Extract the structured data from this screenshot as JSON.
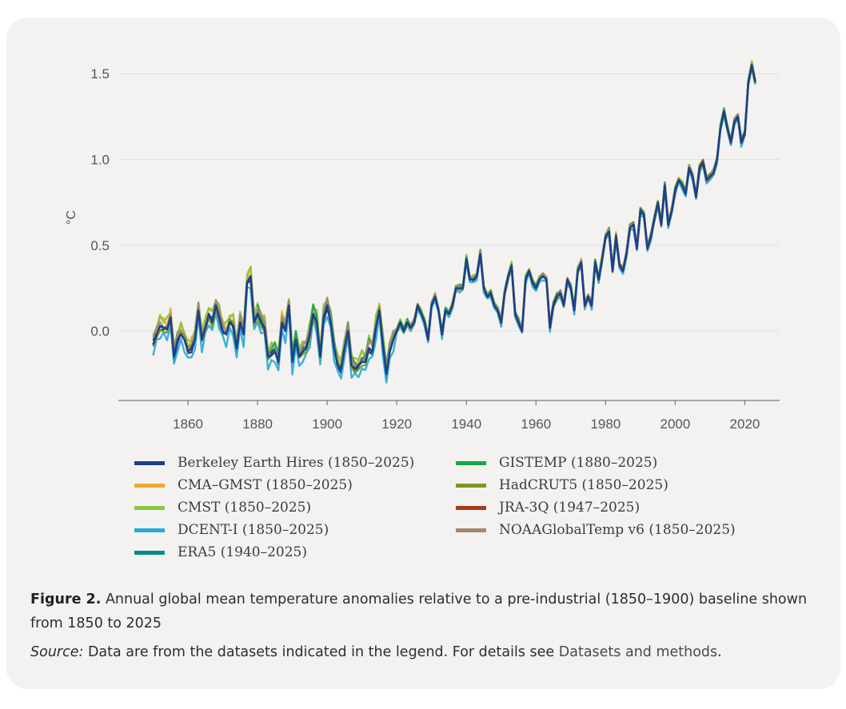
{
  "chart_data": {
    "type": "line",
    "title": "",
    "xlabel": "",
    "ylabel": "°C",
    "xlim": [
      1840,
      2030
    ],
    "ylim": [
      -0.4,
      1.65
    ],
    "x_ticks": [
      "1860",
      "1880",
      "1900",
      "1920",
      "1940",
      "1960",
      "1980",
      "2000",
      "2020"
    ],
    "y_ticks": [
      "0.0",
      "0.5",
      "1.0",
      "1.5"
    ],
    "grid": "horizontal",
    "legend_position": "bottom",
    "x": [
      1850,
      1851,
      1852,
      1853,
      1854,
      1855,
      1856,
      1857,
      1858,
      1859,
      1860,
      1861,
      1862,
      1863,
      1864,
      1865,
      1866,
      1867,
      1868,
      1869,
      1870,
      1871,
      1872,
      1873,
      1874,
      1875,
      1876,
      1877,
      1878,
      1879,
      1880,
      1881,
      1882,
      1883,
      1884,
      1885,
      1886,
      1887,
      1888,
      1889,
      1890,
      1891,
      1892,
      1893,
      1894,
      1895,
      1896,
      1897,
      1898,
      1899,
      1900,
      1901,
      1902,
      1903,
      1904,
      1905,
      1906,
      1907,
      1908,
      1909,
      1910,
      1911,
      1912,
      1913,
      1914,
      1915,
      1916,
      1917,
      1918,
      1919,
      1920,
      1921,
      1922,
      1923,
      1924,
      1925,
      1926,
      1927,
      1928,
      1929,
      1930,
      1931,
      1932,
      1933,
      1934,
      1935,
      1936,
      1937,
      1938,
      1939,
      1940,
      1941,
      1942,
      1943,
      1944,
      1945,
      1946,
      1947,
      1948,
      1949,
      1950,
      1951,
      1952,
      1953,
      1954,
      1955,
      1956,
      1957,
      1958,
      1959,
      1960,
      1961,
      1962,
      1963,
      1964,
      1965,
      1966,
      1967,
      1968,
      1969,
      1970,
      1971,
      1972,
      1973,
      1974,
      1975,
      1976,
      1977,
      1978,
      1979,
      1980,
      1981,
      1982,
      1983,
      1984,
      1985,
      1986,
      1987,
      1988,
      1989,
      1990,
      1991,
      1992,
      1993,
      1994,
      1995,
      1996,
      1997,
      1998,
      1999,
      2000,
      2001,
      2002,
      2003,
      2004,
      2005,
      2006,
      2007,
      2008,
      2009,
      2010,
      2011,
      2012,
      2013,
      2014,
      2015,
      2016,
      2017,
      2018,
      2019,
      2020,
      2021,
      2022,
      2023,
      2024,
      2025
    ],
    "base_values": [
      -0.08,
      -0.02,
      0.03,
      0.02,
      0.01,
      0.08,
      -0.15,
      -0.05,
      -0.02,
      -0.05,
      -0.12,
      -0.1,
      -0.05,
      0.12,
      -0.05,
      0.02,
      0.1,
      0.05,
      0.15,
      0.08,
      0.0,
      -0.02,
      0.05,
      0.03,
      -0.1,
      0.05,
      -0.02,
      0.28,
      0.32,
      0.05,
      0.1,
      0.05,
      0.02,
      -0.15,
      -0.14,
      -0.12,
      -0.18,
      0.05,
      0.0,
      0.15,
      -0.18,
      -0.05,
      -0.15,
      -0.12,
      -0.1,
      -0.02,
      0.1,
      0.05,
      -0.15,
      0.08,
      0.15,
      0.05,
      -0.1,
      -0.2,
      -0.22,
      -0.1,
      0.0,
      -0.2,
      -0.22,
      -0.2,
      -0.18,
      -0.18,
      -0.1,
      -0.12,
      0.02,
      0.12,
      -0.08,
      -0.25,
      -0.12,
      -0.05,
      0.0,
      0.05,
      0.0,
      0.05,
      0.02,
      0.05,
      0.15,
      0.1,
      0.05,
      -0.05,
      0.15,
      0.2,
      0.12,
      -0.02,
      0.12,
      0.1,
      0.15,
      0.25,
      0.25,
      0.25,
      0.42,
      0.3,
      0.3,
      0.32,
      0.45,
      0.25,
      0.2,
      0.22,
      0.15,
      0.12,
      0.05,
      0.22,
      0.32,
      0.38,
      0.1,
      0.05,
      0.0,
      0.3,
      0.35,
      0.28,
      0.25,
      0.3,
      0.32,
      0.3,
      0.02,
      0.15,
      0.2,
      0.22,
      0.15,
      0.3,
      0.25,
      0.12,
      0.35,
      0.4,
      0.15,
      0.2,
      0.15,
      0.4,
      0.3,
      0.42,
      0.55,
      0.58,
      0.35,
      0.55,
      0.38,
      0.35,
      0.45,
      0.6,
      0.62,
      0.48,
      0.7,
      0.68,
      0.48,
      0.55,
      0.65,
      0.75,
      0.62,
      0.85,
      0.62,
      0.7,
      0.82,
      0.88,
      0.85,
      0.8,
      0.95,
      0.9,
      0.78,
      0.95,
      0.98,
      0.88,
      0.9,
      0.92,
      1.0,
      1.18,
      1.28,
      1.18,
      1.1,
      1.22,
      1.25,
      1.1,
      1.15,
      1.45,
      1.55,
      1.45
    ],
    "series": [
      {
        "name": "Berkeley Earth Hires (1850–2025)",
        "start": 1850,
        "end": 2025,
        "color": "#1f3f87",
        "wiggle": 0.0
      },
      {
        "name": "CMA–GMST (1850–2025)",
        "start": 1850,
        "end": 2025,
        "color": "#f0a830",
        "wiggle": 0.04
      },
      {
        "name": "CMST (1850–2025)",
        "start": 1850,
        "end": 2025,
        "color": "#8cc63f",
        "wiggle": 0.05
      },
      {
        "name": "DCENT-I (1850–2025)",
        "start": 1850,
        "end": 2025,
        "color": "#27aad8",
        "wiggle": -0.05
      },
      {
        "name": "ERA5 (1940–2025)",
        "start": 1940,
        "end": 2025,
        "color": "#078a86",
        "wiggle": 0.02
      },
      {
        "name": "GISTEMP (1880–2025)",
        "start": 1880,
        "end": 2025,
        "color": "#15a84a",
        "wiggle": 0.03
      },
      {
        "name": "HadCRUT5 (1850–2025)",
        "start": 1850,
        "end": 2025,
        "color": "#7a9a1e",
        "wiggle": 0.0
      },
      {
        "name": "JRA-3Q (1947–2025)",
        "start": 1947,
        "end": 2025,
        "color": "#a23d1a",
        "wiggle": 0.01
      },
      {
        "name": "NOAAGlobalTemp v6 (1850–2025)",
        "start": 1850,
        "end": 2025,
        "color": "#a08a74",
        "wiggle": 0.02
      }
    ]
  },
  "caption": {
    "figure_label": "Figure 2.",
    "text": "Annual global mean temperature anomalies relative to a pre-industrial (1850–1900) baseline shown from 1850 to 2025"
  },
  "source": {
    "label": "Source:",
    "text": " Data are from the datasets indicated in the legend. For details see ",
    "link": "Datasets and methods",
    "end": "."
  },
  "legend": {
    "items": [
      {
        "label": "Berkeley Earth Hires (1850–2025)",
        "color": "#1f3f87"
      },
      {
        "label": "CMA–GMST (1850–2025)",
        "color": "#f0a830"
      },
      {
        "label": "CMST (1850–2025)",
        "color": "#8cc63f"
      },
      {
        "label": "DCENT-I (1850–2025)",
        "color": "#27aad8"
      },
      {
        "label": "ERA5 (1940–2025)",
        "color": "#078a86"
      },
      {
        "label": "GISTEMP (1880–2025)",
        "color": "#15a84a"
      },
      {
        "label": "HadCRUT5 (1850–2025)",
        "color": "#7a9a1e"
      },
      {
        "label": "JRA-3Q (1947–2025)",
        "color": "#a23d1a"
      },
      {
        "label": "NOAAGlobalTemp v6 (1850–2025)",
        "color": "#a08a74"
      }
    ]
  }
}
